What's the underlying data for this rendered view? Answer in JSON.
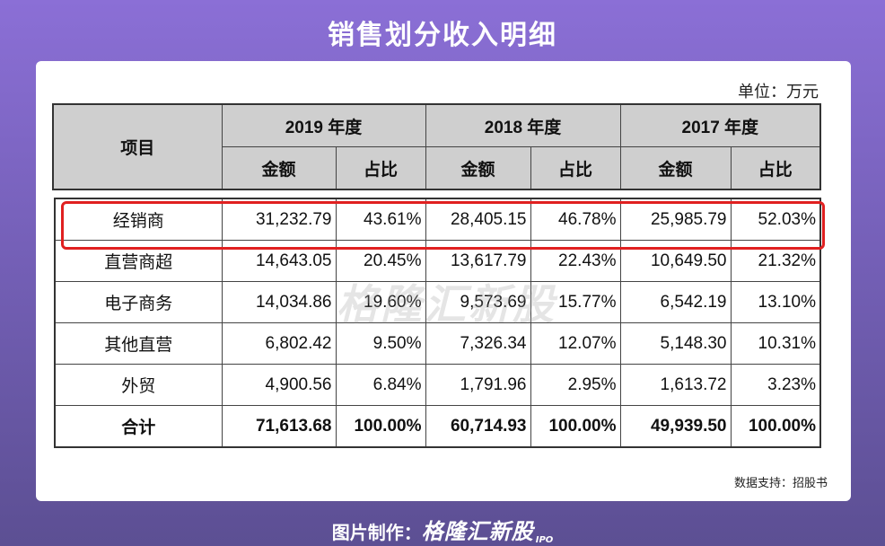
{
  "title": "销售划分收入明细",
  "unit": "单位：万元",
  "watermark": "格隆汇新股",
  "table": {
    "item_header": "项目",
    "years": [
      "2019 年度",
      "2018 年度",
      "2017 年度"
    ],
    "sub_headers": [
      "金额",
      "占比"
    ],
    "rows": [
      {
        "label": "经销商",
        "values": [
          "31,232.79",
          "43.61%",
          "28,405.15",
          "46.78%",
          "25,985.79",
          "52.03%"
        ]
      },
      {
        "label": "直营商超",
        "values": [
          "14,643.05",
          "20.45%",
          "13,617.79",
          "22.43%",
          "10,649.50",
          "21.32%"
        ]
      },
      {
        "label": "电子商务",
        "values": [
          "14,034.86",
          "19.60%",
          "9,573.69",
          "15.77%",
          "6,542.19",
          "13.10%"
        ]
      },
      {
        "label": "其他直营",
        "values": [
          "6,802.42",
          "9.50%",
          "7,326.34",
          "12.07%",
          "5,148.30",
          "10.31%"
        ]
      },
      {
        "label": "外贸",
        "values": [
          "4,900.56",
          "6.84%",
          "1,791.96",
          "2.95%",
          "1,613.72",
          "3.23%"
        ]
      },
      {
        "label": "合计",
        "values": [
          "71,613.68",
          "100.00%",
          "60,714.93",
          "100.00%",
          "49,939.50",
          "100.00%"
        ]
      }
    ],
    "highlight_color": "#e02020"
  },
  "source": "数据支持：招股书",
  "footer": {
    "prefix": "图片制作：",
    "brand": "格隆汇新股",
    "suffix": "IPO"
  }
}
